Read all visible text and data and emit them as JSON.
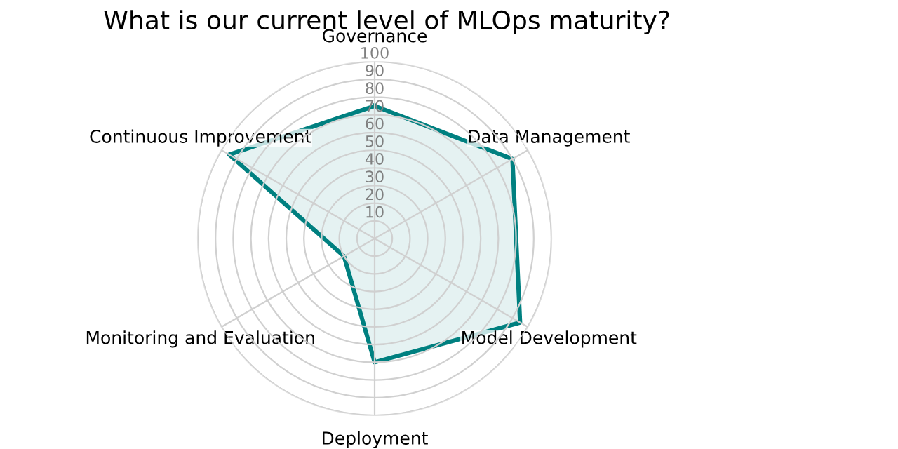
{
  "chart_data": {
    "type": "radar",
    "title": "What is our current level of MLOps maturity?",
    "categories": [
      "Governance",
      "Data Management",
      "Model Development",
      "Deployment",
      "Monitoring and Evaluation",
      "Continuous Improvement"
    ],
    "series": [
      {
        "color": "#008080",
        "values": [
          75,
          90,
          95,
          70,
          20,
          95
        ]
      }
    ],
    "ylim": [
      0,
      100
    ],
    "yticks": [
      10,
      20,
      30,
      40,
      50,
      60,
      70,
      80,
      90,
      100
    ],
    "grid": true
  }
}
